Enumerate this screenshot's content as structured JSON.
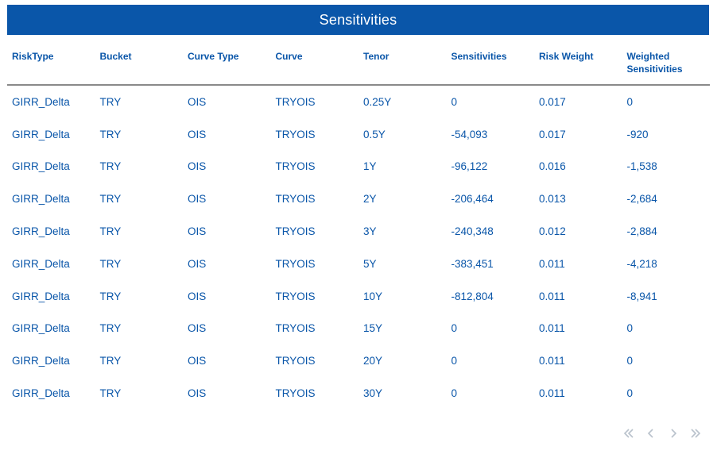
{
  "title": "Sensitivities",
  "columns": [
    "RiskType",
    "Bucket",
    "Curve Type",
    "Curve",
    "Tenor",
    "Sensitivities",
    "Risk Weight",
    "Weighted\nSensitivities"
  ],
  "rows": [
    [
      "GIRR_Delta",
      "TRY",
      "OIS",
      "TRYOIS",
      "0.25Y",
      "0",
      "0.017",
      "0"
    ],
    [
      "GIRR_Delta",
      "TRY",
      "OIS",
      "TRYOIS",
      "0.5Y",
      "-54,093",
      "0.017",
      "-920"
    ],
    [
      "GIRR_Delta",
      "TRY",
      "OIS",
      "TRYOIS",
      "1Y",
      "-96,122",
      "0.016",
      "-1,538"
    ],
    [
      "GIRR_Delta",
      "TRY",
      "OIS",
      "TRYOIS",
      "2Y",
      "-206,464",
      "0.013",
      "-2,684"
    ],
    [
      "GIRR_Delta",
      "TRY",
      "OIS",
      "TRYOIS",
      "3Y",
      "-240,348",
      "0.012",
      "-2,884"
    ],
    [
      "GIRR_Delta",
      "TRY",
      "OIS",
      "TRYOIS",
      "5Y",
      "-383,451",
      "0.011",
      "-4,218"
    ],
    [
      "GIRR_Delta",
      "TRY",
      "OIS",
      "TRYOIS",
      "10Y",
      "-812,804",
      "0.011",
      "-8,941"
    ],
    [
      "GIRR_Delta",
      "TRY",
      "OIS",
      "TRYOIS",
      "15Y",
      "0",
      "0.011",
      "0"
    ],
    [
      "GIRR_Delta",
      "TRY",
      "OIS",
      "TRYOIS",
      "20Y",
      "0",
      "0.011",
      "0"
    ],
    [
      "GIRR_Delta",
      "TRY",
      "OIS",
      "TRYOIS",
      "30Y",
      "0",
      "0.011",
      "0"
    ]
  ],
  "pagination": {
    "buttons": [
      {
        "name": "first-page-icon",
        "enabled": false
      },
      {
        "name": "previous-page-icon",
        "enabled": false
      },
      {
        "name": "next-page-icon",
        "enabled": false
      },
      {
        "name": "last-page-icon",
        "enabled": false
      }
    ]
  },
  "colors": {
    "accent": "#0a56a9",
    "title_text": "#ffffff",
    "header_rule": "#8a8a8a",
    "pager_icon": "#b9c2cc"
  }
}
